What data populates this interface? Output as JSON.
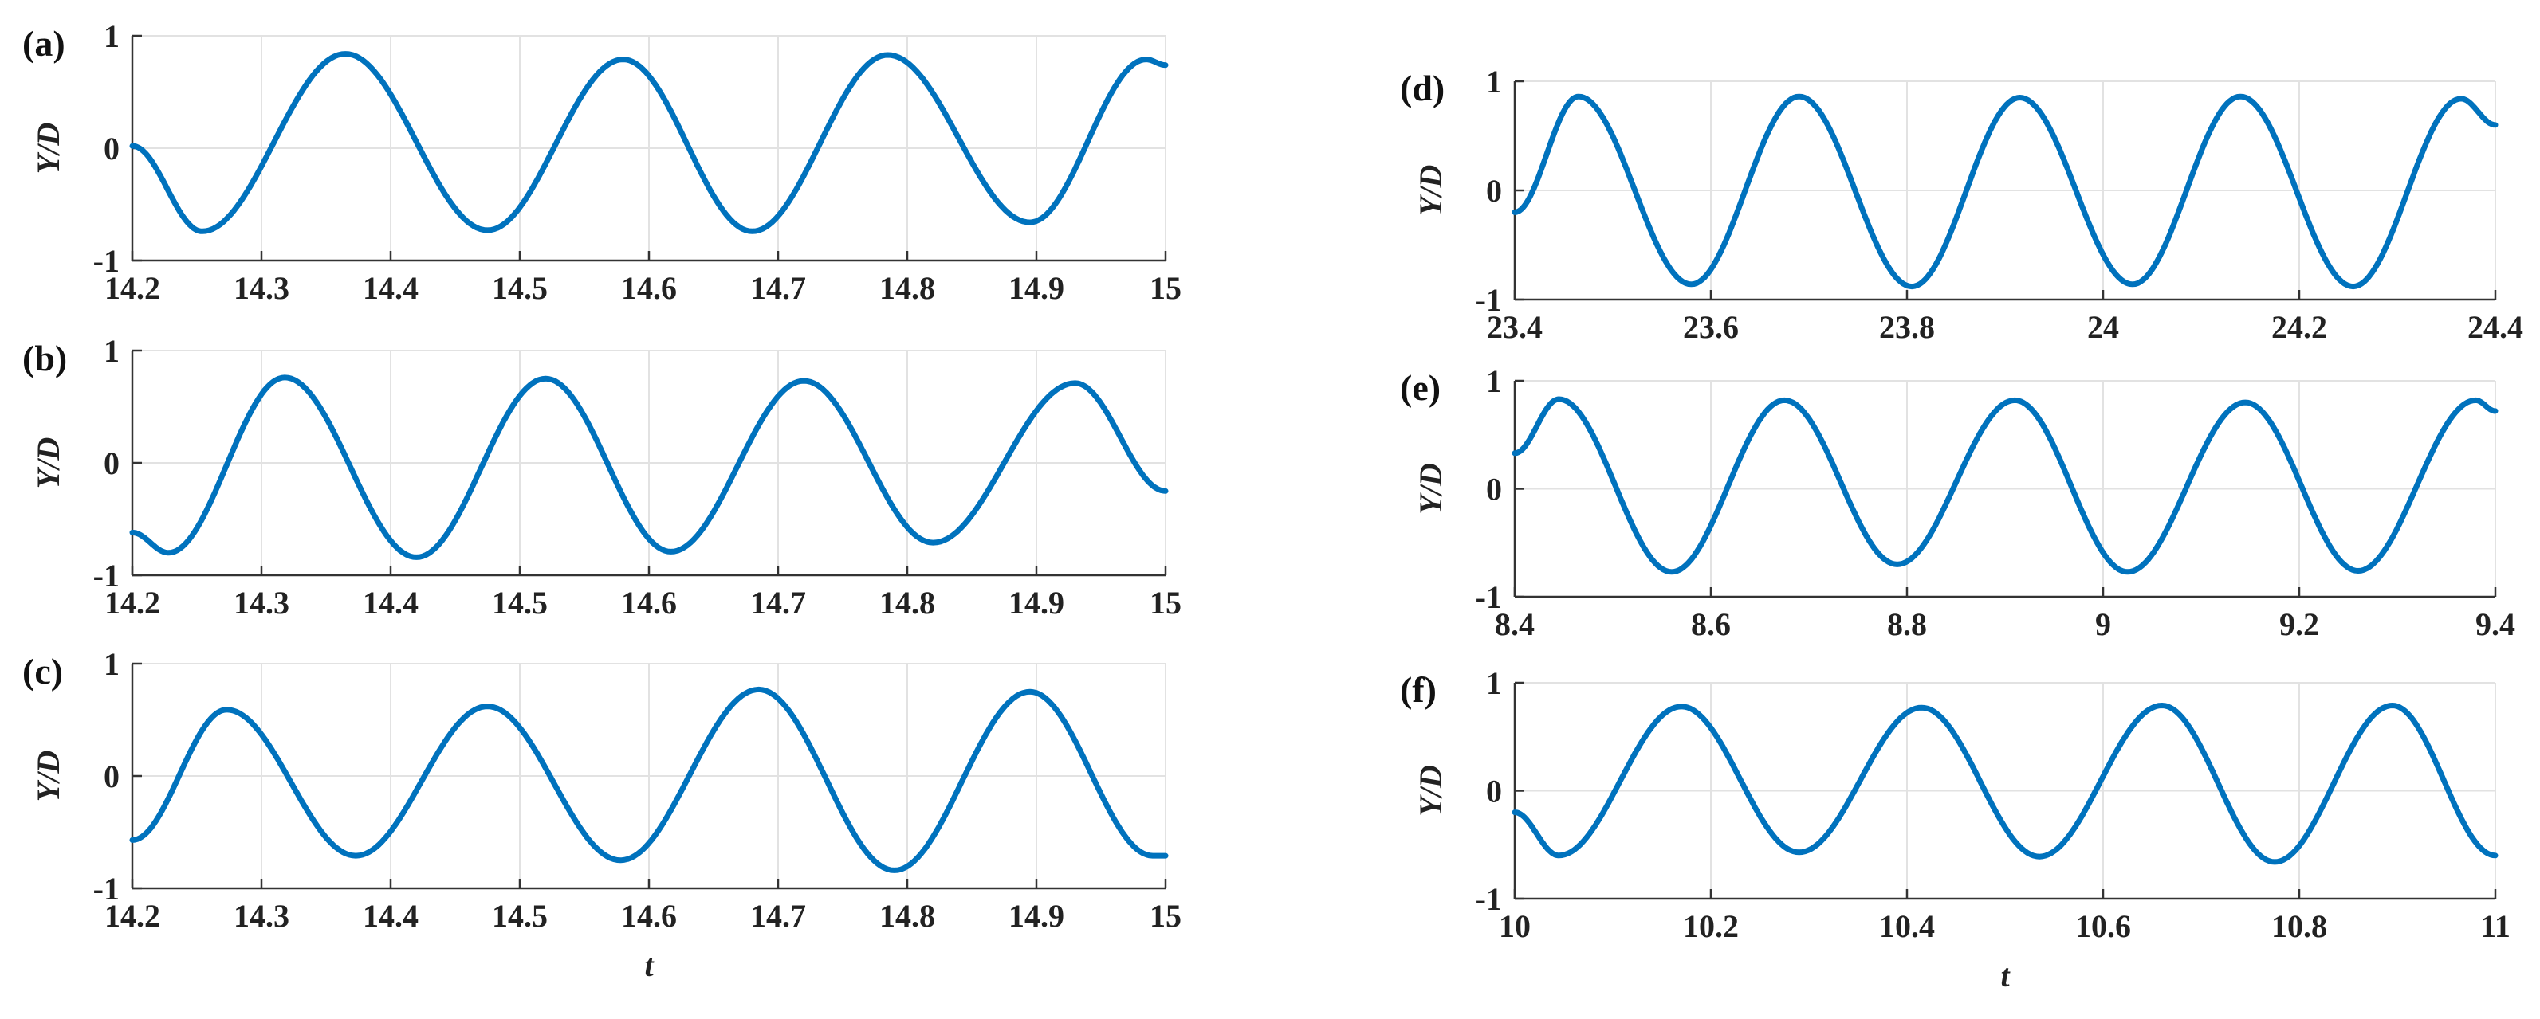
{
  "chart_data": [
    {
      "type": "line",
      "panel_label": "(a)",
      "xlabel": "",
      "ylabel": "Y/D",
      "xlim": [
        14.2,
        15
      ],
      "ylim": [
        -1,
        1
      ],
      "xticks": [
        14.2,
        14.3,
        14.4,
        14.5,
        14.6,
        14.7,
        14.8,
        14.9,
        15
      ],
      "yticks": [
        -1,
        0,
        1
      ],
      "grid": true,
      "series": [
        {
          "color": "#0072BD",
          "x": [
            14.2,
            14.254,
            14.365,
            14.475,
            14.58,
            14.68,
            14.785,
            14.895,
            14.985,
            15.0
          ],
          "y": [
            0.02,
            -0.74,
            0.84,
            -0.73,
            0.79,
            -0.74,
            0.83,
            -0.66,
            0.79,
            0.74
          ]
        }
      ]
    },
    {
      "type": "line",
      "panel_label": "(b)",
      "xlabel": "",
      "ylabel": "Y/D",
      "xlim": [
        14.2,
        15
      ],
      "ylim": [
        -1,
        1
      ],
      "xticks": [
        14.2,
        14.3,
        14.4,
        14.5,
        14.6,
        14.7,
        14.8,
        14.9,
        15
      ],
      "yticks": [
        -1,
        0,
        1
      ],
      "grid": true,
      "series": [
        {
          "color": "#0072BD",
          "x": [
            14.2,
            14.228,
            14.318,
            14.42,
            14.52,
            14.617,
            14.72,
            14.82,
            14.93,
            15.0
          ],
          "y": [
            -0.62,
            -0.8,
            0.76,
            -0.84,
            0.75,
            -0.79,
            0.73,
            -0.71,
            0.71,
            -0.25
          ]
        }
      ]
    },
    {
      "type": "line",
      "panel_label": "(c)",
      "xlabel": "t",
      "ylabel": "Y/D",
      "xlim": [
        14.2,
        15
      ],
      "ylim": [
        -1,
        1
      ],
      "xticks": [
        14.2,
        14.3,
        14.4,
        14.5,
        14.6,
        14.7,
        14.8,
        14.9,
        15
      ],
      "yticks": [
        -1,
        0,
        1
      ],
      "grid": true,
      "series": [
        {
          "color": "#0072BD",
          "x": [
            14.2,
            14.273,
            14.373,
            14.475,
            14.578,
            14.685,
            14.79,
            14.895,
            14.99,
            15.0
          ],
          "y": [
            -0.57,
            0.59,
            -0.71,
            0.62,
            -0.75,
            0.77,
            -0.84,
            0.75,
            -0.71,
            -0.71
          ]
        }
      ]
    },
    {
      "type": "line",
      "panel_label": "(d)",
      "xlabel": "",
      "ylabel": "Y/D",
      "xlim": [
        23.4,
        24.4
      ],
      "ylim": [
        -1,
        1
      ],
      "xticks": [
        23.4,
        23.6,
        23.8,
        24,
        24.2,
        24.4
      ],
      "yticks": [
        -1,
        0,
        1
      ],
      "grid": true,
      "series": [
        {
          "color": "#0072BD",
          "x": [
            23.4,
            23.465,
            23.58,
            23.69,
            23.805,
            23.915,
            24.03,
            24.14,
            24.255,
            24.365,
            24.4
          ],
          "y": [
            -0.2,
            0.86,
            -0.86,
            0.86,
            -0.88,
            0.85,
            -0.86,
            0.86,
            -0.88,
            0.84,
            0.6
          ]
        }
      ]
    },
    {
      "type": "line",
      "panel_label": "(e)",
      "xlabel": "",
      "ylabel": "Y/D",
      "xlim": [
        8.4,
        9.4
      ],
      "ylim": [
        -1,
        1
      ],
      "xticks": [
        8.4,
        8.6,
        8.8,
        9,
        9.2,
        9.4
      ],
      "yticks": [
        -1,
        0,
        1
      ],
      "grid": true,
      "series": [
        {
          "color": "#0072BD",
          "x": [
            8.4,
            8.445,
            8.56,
            8.675,
            8.79,
            8.91,
            9.025,
            9.145,
            9.26,
            9.38,
            9.4
          ],
          "y": [
            0.33,
            0.83,
            -0.77,
            0.82,
            -0.7,
            0.82,
            -0.77,
            0.8,
            -0.76,
            0.82,
            0.72
          ]
        }
      ]
    },
    {
      "type": "line",
      "panel_label": "(f)",
      "xlabel": "t",
      "ylabel": "Y/D",
      "xlim": [
        10,
        11
      ],
      "ylim": [
        -1,
        1
      ],
      "xticks": [
        10,
        10.2,
        10.4,
        10.6,
        10.8,
        11
      ],
      "yticks": [
        -1,
        0,
        1
      ],
      "grid": true,
      "series": [
        {
          "color": "#0072BD",
          "x": [
            10.0,
            10.045,
            10.17,
            10.29,
            10.415,
            10.535,
            10.66,
            10.775,
            10.895,
            11.0
          ],
          "y": [
            -0.2,
            -0.6,
            0.78,
            -0.57,
            0.77,
            -0.61,
            0.79,
            -0.66,
            0.79,
            -0.6
          ]
        }
      ]
    }
  ]
}
